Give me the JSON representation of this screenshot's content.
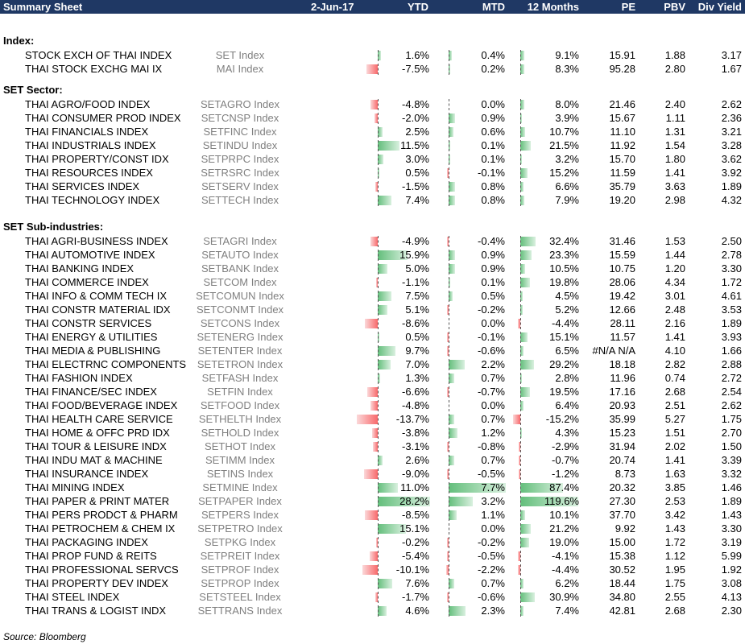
{
  "header": {
    "title": "Summary Sheet",
    "date": "2-Jun-17",
    "columns": [
      "YTD",
      "MTD",
      "12 Months",
      "PE",
      "PBV",
      "Div Yield"
    ]
  },
  "colors": {
    "header_bg": "#1f3864",
    "positive_bar": "#63be7b",
    "negative_bar": "#f8696b"
  },
  "sections": [
    {
      "title": "Index:",
      "rows": [
        {
          "name": "STOCK EXCH OF THAI INDEX",
          "code": "SET Index",
          "ytd": "1.6%",
          "mtd": "0.4%",
          "m12": "9.1%",
          "pe": "15.91",
          "pbv": "1.88",
          "dy": "3.17",
          "v": [
            1.6,
            0.4,
            9.1
          ]
        },
        {
          "name": "THAI STOCK EXCHG MAI IX",
          "code": "MAI Index",
          "ytd": "-7.5%",
          "mtd": "0.2%",
          "m12": "8.3%",
          "pe": "95.28",
          "pbv": "2.80",
          "dy": "1.67",
          "v": [
            -7.5,
            0.2,
            8.3
          ]
        }
      ]
    },
    {
      "title": "SET Sector:",
      "rows": [
        {
          "name": "THAI AGRO/FOOD INDEX",
          "code": "SETAGRO Index",
          "ytd": "-4.8%",
          "mtd": "0.0%",
          "m12": "8.0%",
          "pe": "21.46",
          "pbv": "2.40",
          "dy": "2.62",
          "v": [
            -4.8,
            0.0,
            8.0
          ]
        },
        {
          "name": "THAI CONSUMER PROD INDEX",
          "code": "SETCNSP Index",
          "ytd": "-2.0%",
          "mtd": "0.9%",
          "m12": "3.9%",
          "pe": "15.67",
          "pbv": "1.11",
          "dy": "2.36",
          "v": [
            -2.0,
            0.9,
            3.9
          ]
        },
        {
          "name": "THAI FINANCIALS INDEX",
          "code": "SETFINC Index",
          "ytd": "2.5%",
          "mtd": "0.6%",
          "m12": "10.7%",
          "pe": "11.10",
          "pbv": "1.31",
          "dy": "3.21",
          "v": [
            2.5,
            0.6,
            10.7
          ]
        },
        {
          "name": "THAI INDUSTRIALS INDEX",
          "code": "SETINDU Index",
          "ytd": "11.5%",
          "mtd": "0.1%",
          "m12": "21.5%",
          "pe": "11.92",
          "pbv": "1.54",
          "dy": "3.28",
          "v": [
            11.5,
            0.1,
            21.5
          ]
        },
        {
          "name": "THAI PROPERTY/CONST IDX",
          "code": "SETPRPC Index",
          "ytd": "3.0%",
          "mtd": "0.1%",
          "m12": "3.2%",
          "pe": "15.70",
          "pbv": "1.80",
          "dy": "3.62",
          "v": [
            3.0,
            0.1,
            3.2
          ]
        },
        {
          "name": "THAI RESOURCES INDEX",
          "code": "SETRSRC Index",
          "ytd": "0.5%",
          "mtd": "-0.1%",
          "m12": "15.2%",
          "pe": "11.59",
          "pbv": "1.41",
          "dy": "3.92",
          "v": [
            0.5,
            -0.1,
            15.2
          ]
        },
        {
          "name": "THAI SERVICES INDEX",
          "code": "SETSERV Index",
          "ytd": "-1.5%",
          "mtd": "0.8%",
          "m12": "6.6%",
          "pe": "35.79",
          "pbv": "3.63",
          "dy": "1.89",
          "v": [
            -1.5,
            0.8,
            6.6
          ]
        },
        {
          "name": "THAI TECHNOLOGY INDEX",
          "code": "SETTECH Index",
          "ytd": "7.4%",
          "mtd": "0.8%",
          "m12": "7.9%",
          "pe": "19.20",
          "pbv": "2.98",
          "dy": "4.32",
          "v": [
            7.4,
            0.8,
            7.9
          ]
        }
      ]
    },
    {
      "title": "SET Sub-industries:",
      "rows": [
        {
          "name": "THAI AGRI-BUSINESS INDEX",
          "code": "SETAGRI Index",
          "ytd": "-4.9%",
          "mtd": "-0.4%",
          "m12": "32.4%",
          "pe": "31.46",
          "pbv": "1.53",
          "dy": "2.50",
          "v": [
            -4.9,
            -0.4,
            32.4
          ]
        },
        {
          "name": "THAI AUTOMOTIVE INDEX",
          "code": "SETAUTO Index",
          "ytd": "15.9%",
          "mtd": "0.9%",
          "m12": "23.3%",
          "pe": "15.59",
          "pbv": "1.44",
          "dy": "2.78",
          "v": [
            15.9,
            0.9,
            23.3
          ]
        },
        {
          "name": "THAI BANKING INDEX",
          "code": "SETBANK Index",
          "ytd": "5.0%",
          "mtd": "0.9%",
          "m12": "10.5%",
          "pe": "10.75",
          "pbv": "1.20",
          "dy": "3.30",
          "v": [
            5.0,
            0.9,
            10.5
          ]
        },
        {
          "name": "THAI COMMERCE INDEX",
          "code": "SETCOM Index",
          "ytd": "-1.1%",
          "mtd": "0.1%",
          "m12": "19.8%",
          "pe": "28.06",
          "pbv": "4.34",
          "dy": "1.72",
          "v": [
            -1.1,
            0.1,
            19.8
          ]
        },
        {
          "name": "THAI INFO & COMM TECH IX",
          "code": "SETCOMUN Index",
          "ytd": "7.5%",
          "mtd": "0.5%",
          "m12": "4.5%",
          "pe": "19.42",
          "pbv": "3.01",
          "dy": "4.61",
          "v": [
            7.5,
            0.5,
            4.5
          ]
        },
        {
          "name": "THAI CONSTR MATERIAL IDX",
          "code": "SETCONMT Index",
          "ytd": "5.1%",
          "mtd": "-0.2%",
          "m12": "5.2%",
          "pe": "12.66",
          "pbv": "2.48",
          "dy": "3.53",
          "v": [
            5.1,
            -0.2,
            5.2
          ]
        },
        {
          "name": "THAI CONSTR SERVICES",
          "code": "SETCONS Index",
          "ytd": "-8.6%",
          "mtd": "0.0%",
          "m12": "-4.4%",
          "pe": "28.11",
          "pbv": "2.16",
          "dy": "1.89",
          "v": [
            -8.6,
            0.0,
            -4.4
          ]
        },
        {
          "name": "THAI ENERGY & UTILITIES",
          "code": "SETENERG Index",
          "ytd": "0.5%",
          "mtd": "-0.1%",
          "m12": "15.1%",
          "pe": "11.57",
          "pbv": "1.41",
          "dy": "3.93",
          "v": [
            0.5,
            -0.1,
            15.1
          ]
        },
        {
          "name": "THAI MEDIA & PUBLISHING",
          "code": "SETENTER Index",
          "ytd": "9.7%",
          "mtd": "-0.6%",
          "m12": "6.5%",
          "pe": "#N/A N/A",
          "pbv": "4.10",
          "dy": "1.66",
          "v": [
            9.7,
            -0.6,
            6.5
          ]
        },
        {
          "name": "THAI ELECTRNC COMPONENTS",
          "code": "SETETRON Index",
          "ytd": "7.0%",
          "mtd": "2.2%",
          "m12": "29.2%",
          "pe": "18.18",
          "pbv": "2.82",
          "dy": "2.88",
          "v": [
            7.0,
            2.2,
            29.2
          ]
        },
        {
          "name": "THAI FASHION INDEX",
          "code": "SETFASH Index",
          "ytd": "1.3%",
          "mtd": "0.7%",
          "m12": "2.8%",
          "pe": "11.96",
          "pbv": "0.74",
          "dy": "2.72",
          "v": [
            1.3,
            0.7,
            2.8
          ]
        },
        {
          "name": "THAI FINANCE/SEC INDEX",
          "code": "SETFIN Index",
          "ytd": "-6.6%",
          "mtd": "-0.7%",
          "m12": "19.5%",
          "pe": "17.16",
          "pbv": "2.68",
          "dy": "2.54",
          "v": [
            -6.6,
            -0.7,
            19.5
          ]
        },
        {
          "name": "THAI FOOD/BEVERAGE INDEX",
          "code": "SETFOOD Index",
          "ytd": "-4.8%",
          "mtd": "0.0%",
          "m12": "6.4%",
          "pe": "20.93",
          "pbv": "2.51",
          "dy": "2.62",
          "v": [
            -4.8,
            0.0,
            6.4
          ]
        },
        {
          "name": "THAI HEALTH CARE SERVICE",
          "code": "SETHELTH Index",
          "ytd": "-13.7%",
          "mtd": "0.7%",
          "m12": "-15.2%",
          "pe": "35.99",
          "pbv": "5.27",
          "dy": "1.75",
          "v": [
            -13.7,
            0.7,
            -15.2
          ]
        },
        {
          "name": "THAI HOME & OFFC PRD IDX",
          "code": "SETHOLD Index",
          "ytd": "-3.8%",
          "mtd": "1.2%",
          "m12": "4.3%",
          "pe": "15.23",
          "pbv": "1.51",
          "dy": "2.70",
          "v": [
            -3.8,
            1.2,
            4.3
          ]
        },
        {
          "name": "THAI TOUR & LEISURE INDX",
          "code": "SETHOT Index",
          "ytd": "-3.1%",
          "mtd": "-0.8%",
          "m12": "-2.9%",
          "pe": "31.94",
          "pbv": "2.02",
          "dy": "1.50",
          "v": [
            -3.1,
            -0.8,
            -2.9
          ]
        },
        {
          "name": "THAI INDU MAT & MACHINE",
          "code": "SETIMM Index",
          "ytd": "2.6%",
          "mtd": "0.7%",
          "m12": "-0.7%",
          "pe": "20.74",
          "pbv": "1.41",
          "dy": "3.39",
          "v": [
            2.6,
            0.7,
            -0.7
          ]
        },
        {
          "name": "THAI INSURANCE INDEX",
          "code": "SETINS Index",
          "ytd": "-9.0%",
          "mtd": "-0.5%",
          "m12": "-1.2%",
          "pe": "8.73",
          "pbv": "1.63",
          "dy": "3.32",
          "v": [
            -9.0,
            -0.5,
            -1.2
          ]
        },
        {
          "name": "THAI MINING INDEX",
          "code": "SETMINE Index",
          "ytd": "11.0%",
          "mtd": "7.7%",
          "m12": "87.4%",
          "pe": "20.32",
          "pbv": "3.85",
          "dy": "1.46",
          "v": [
            11.0,
            7.7,
            87.4
          ]
        },
        {
          "name": "THAI PAPER & PRINT MATER",
          "code": "SETPAPER Index",
          "ytd": "28.2%",
          "mtd": "3.2%",
          "m12": "119.6%",
          "pe": "27.30",
          "pbv": "2.53",
          "dy": "1.89",
          "v": [
            28.2,
            3.2,
            119.6
          ]
        },
        {
          "name": "THAI PERS PRODCT & PHARM",
          "code": "SETPERS Index",
          "ytd": "-8.5%",
          "mtd": "1.1%",
          "m12": "10.1%",
          "pe": "37.70",
          "pbv": "3.42",
          "dy": "1.43",
          "v": [
            -8.5,
            1.1,
            10.1
          ]
        },
        {
          "name": "THAI PETROCHEM & CHEM IX",
          "code": "SETPETRO Index",
          "ytd": "15.1%",
          "mtd": "0.0%",
          "m12": "21.2%",
          "pe": "9.92",
          "pbv": "1.43",
          "dy": "3.30",
          "v": [
            15.1,
            0.0,
            21.2
          ]
        },
        {
          "name": "THAI PACKAGING INDEX",
          "code": "SETPKG Index",
          "ytd": "-0.2%",
          "mtd": "-0.2%",
          "m12": "19.0%",
          "pe": "15.00",
          "pbv": "1.72",
          "dy": "3.19",
          "v": [
            -0.2,
            -0.2,
            19.0
          ]
        },
        {
          "name": "THAI PROP FUND & REITS",
          "code": "SETPREIT Index",
          "ytd": "-5.4%",
          "mtd": "-0.5%",
          "m12": "-4.1%",
          "pe": "15.38",
          "pbv": "1.12",
          "dy": "5.99",
          "v": [
            -5.4,
            -0.5,
            -4.1
          ]
        },
        {
          "name": "THAI PROFESSIONAL SERVCS",
          "code": "SETPROF Index",
          "ytd": "-10.1%",
          "mtd": "-2.2%",
          "m12": "-4.4%",
          "pe": "30.52",
          "pbv": "1.95",
          "dy": "1.92",
          "v": [
            -10.1,
            -2.2,
            -4.4
          ]
        },
        {
          "name": "THAI PROPERTY DEV INDEX",
          "code": "SETPROP Index",
          "ytd": "7.6%",
          "mtd": "0.7%",
          "m12": "6.2%",
          "pe": "18.44",
          "pbv": "1.75",
          "dy": "3.08",
          "v": [
            7.6,
            0.7,
            6.2
          ]
        },
        {
          "name": "THAI STEEL INDEX",
          "code": "SETSTEEL Index",
          "ytd": "-1.7%",
          "mtd": "-0.6%",
          "m12": "30.9%",
          "pe": "34.80",
          "pbv": "2.55",
          "dy": "4.13",
          "v": [
            -1.7,
            -0.6,
            30.9
          ]
        },
        {
          "name": "THAI TRANS & LOGIST INDX",
          "code": "SETTRANS Index",
          "ytd": "4.6%",
          "mtd": "2.3%",
          "m12": "7.4%",
          "pe": "42.81",
          "pbv": "2.68",
          "dy": "2.30",
          "v": [
            4.6,
            2.3,
            7.4
          ]
        }
      ]
    }
  ],
  "source": "Source: Bloomberg"
}
